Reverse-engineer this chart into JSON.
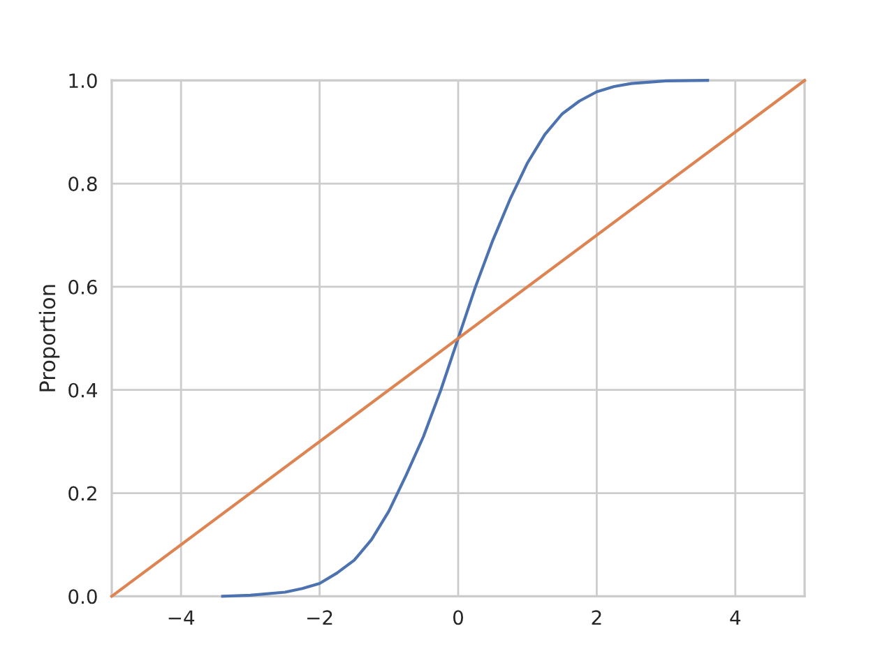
{
  "chart_data": {
    "type": "line",
    "ylabel": "Proportion",
    "series": [
      {
        "color": "#4c72b0",
        "x": [
          -3.4,
          -3.0,
          -2.5,
          -2.25,
          -2.0,
          -1.75,
          -1.5,
          -1.25,
          -1.0,
          -0.75,
          -0.5,
          -0.25,
          0.0,
          0.25,
          0.5,
          0.75,
          1.0,
          1.25,
          1.5,
          1.75,
          2.0,
          2.25,
          2.5,
          3.0,
          3.6
        ],
        "values": [
          0.0,
          0.002,
          0.008,
          0.015,
          0.025,
          0.045,
          0.07,
          0.11,
          0.165,
          0.235,
          0.31,
          0.4,
          0.5,
          0.6,
          0.69,
          0.77,
          0.84,
          0.895,
          0.935,
          0.96,
          0.978,
          0.988,
          0.994,
          0.999,
          1.0
        ]
      },
      {
        "color": "#dd8452",
        "x": [
          -5,
          5
        ],
        "values": [
          0.0,
          1.0
        ]
      }
    ],
    "xlim": [
      -5,
      5
    ],
    "ylim": [
      0,
      1
    ],
    "xticks": [
      {
        "value": -4,
        "label": "−4"
      },
      {
        "value": -2,
        "label": "−2"
      },
      0,
      2,
      4
    ],
    "yticks": [
      {
        "value": 0,
        "label": "0.0"
      },
      {
        "value": 0.2,
        "label": "0.2"
      },
      {
        "value": 0.4,
        "label": "0.4"
      },
      {
        "value": 0.6,
        "label": "0.6"
      },
      {
        "value": 0.8,
        "label": "0.8"
      },
      {
        "value": 1,
        "label": "1.0"
      }
    ],
    "grid": true
  }
}
